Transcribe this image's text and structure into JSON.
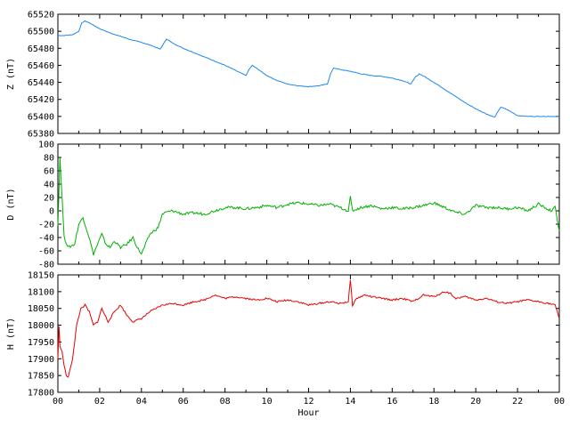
{
  "chart_data": [
    {
      "type": "line",
      "ylabel": "Z (nT)",
      "ylim": [
        65380,
        65520
      ],
      "yticks": [
        "65520",
        "65500",
        "65480",
        "65460",
        "65440",
        "65420",
        "65400",
        "65380"
      ],
      "color": "#1c86ee",
      "x": [
        0.0,
        0.3,
        0.7,
        1.0,
        1.15,
        1.3,
        1.5,
        2.0,
        2.5,
        3.0,
        3.5,
        4.0,
        4.5,
        4.9,
        5.05,
        5.2,
        5.5,
        6.0,
        6.5,
        7.0,
        7.5,
        8.0,
        8.5,
        9.0,
        9.15,
        9.3,
        9.6,
        10.0,
        10.5,
        11.0,
        11.5,
        12.0,
        12.5,
        12.9,
        13.05,
        13.2,
        13.5,
        14.0,
        14.5,
        15.0,
        15.5,
        16.0,
        16.5,
        16.9,
        17.1,
        17.3,
        17.6,
        18.0,
        18.5,
        19.0,
        19.5,
        20.0,
        20.5,
        20.9,
        21.05,
        21.2,
        21.5,
        22.0,
        22.5,
        23.0,
        23.5,
        24.0
      ],
      "y": [
        65495,
        65495,
        65496,
        65500,
        65510,
        65512,
        65510,
        65503,
        65498,
        65494,
        65490,
        65487,
        65483,
        65479,
        65485,
        65491,
        65486,
        65480,
        65475,
        65470,
        65465,
        65460,
        65454,
        65448,
        65455,
        65460,
        65455,
        65448,
        65442,
        65438,
        65436,
        65435,
        65436,
        65438,
        65450,
        65457,
        65455,
        65453,
        65450,
        65448,
        65447,
        65445,
        65442,
        65438,
        65446,
        65450,
        65446,
        65440,
        65432,
        65424,
        65416,
        65409,
        65403,
        65399,
        65405,
        65411,
        65408,
        65401,
        65400,
        65400,
        65400,
        65400
      ]
    },
    {
      "type": "line",
      "ylabel": "D (nT)",
      "ylim": [
        -80,
        100
      ],
      "yticks": [
        "100",
        "80",
        "60",
        "40",
        "20",
        "0",
        "-20",
        "-40",
        "-60",
        "-80"
      ],
      "color": "#00b000",
      "x": [
        0.0,
        0.1,
        0.2,
        0.3,
        0.5,
        0.8,
        1.0,
        1.2,
        1.5,
        1.7,
        1.9,
        2.1,
        2.3,
        2.5,
        2.7,
        3.0,
        3.3,
        3.6,
        3.8,
        4.0,
        4.2,
        4.4,
        4.6,
        4.8,
        5.0,
        5.2,
        5.5,
        6.0,
        6.5,
        7.0,
        7.5,
        8.0,
        8.5,
        9.0,
        9.5,
        10.0,
        10.5,
        11.0,
        11.5,
        12.0,
        12.5,
        13.0,
        13.5,
        13.9,
        14.0,
        14.1,
        14.5,
        15.0,
        15.5,
        16.0,
        16.5,
        17.0,
        17.5,
        18.0,
        18.5,
        19.0,
        19.5,
        20.0,
        20.5,
        21.0,
        21.5,
        22.0,
        22.5,
        23.0,
        23.3,
        23.6,
        23.8,
        24.0
      ],
      "y": [
        -20,
        80,
        20,
        -40,
        -55,
        -50,
        -20,
        -10,
        -40,
        -65,
        -50,
        -35,
        -50,
        -55,
        -45,
        -55,
        -50,
        -40,
        -55,
        -65,
        -50,
        -35,
        -30,
        -25,
        -5,
        -2,
        0,
        -5,
        -3,
        -5,
        0,
        5,
        5,
        3,
        5,
        8,
        5,
        10,
        12,
        10,
        8,
        10,
        5,
        0,
        20,
        0,
        5,
        8,
        3,
        5,
        3,
        5,
        8,
        12,
        5,
        -2,
        -5,
        8,
        5,
        5,
        3,
        5,
        0,
        10,
        5,
        0,
        5,
        -30
      ]
    },
    {
      "type": "line",
      "ylabel": "H (nT)",
      "ylim": [
        17800,
        18150
      ],
      "yticks": [
        "18150",
        "18100",
        "18050",
        "18000",
        "17950",
        "17900",
        "17850",
        "17800"
      ],
      "color": "#e80000",
      "x": [
        0.0,
        0.05,
        0.1,
        0.2,
        0.3,
        0.4,
        0.5,
        0.7,
        0.9,
        1.1,
        1.3,
        1.5,
        1.7,
        1.9,
        2.1,
        2.4,
        2.7,
        3.0,
        3.3,
        3.6,
        4.0,
        4.4,
        4.7,
        5.0,
        5.5,
        6.0,
        6.5,
        7.0,
        7.5,
        8.0,
        8.5,
        9.0,
        9.5,
        10.0,
        10.5,
        11.0,
        11.5,
        12.0,
        12.5,
        13.0,
        13.5,
        13.9,
        14.0,
        14.1,
        14.3,
        14.7,
        15.0,
        15.5,
        16.0,
        16.5,
        17.0,
        17.5,
        18.0,
        18.5,
        18.8,
        19.0,
        19.5,
        20.0,
        20.5,
        21.0,
        21.5,
        22.0,
        22.5,
        23.0,
        23.5,
        23.8,
        24.0
      ],
      "y": [
        17900,
        17995,
        17940,
        17920,
        17880,
        17850,
        17845,
        17900,
        18000,
        18050,
        18060,
        18040,
        18000,
        18010,
        18050,
        18010,
        18040,
        18060,
        18030,
        18010,
        18020,
        18040,
        18050,
        18060,
        18065,
        18060,
        18070,
        18075,
        18090,
        18080,
        18085,
        18080,
        18075,
        18080,
        18070,
        18075,
        18070,
        18060,
        18065,
        18070,
        18065,
        18070,
        18135,
        18060,
        18080,
        18090,
        18085,
        18080,
        18075,
        18080,
        18070,
        18090,
        18085,
        18100,
        18095,
        18080,
        18085,
        18075,
        18080,
        18070,
        18065,
        18070,
        18075,
        18070,
        18065,
        18060,
        18020
      ]
    }
  ],
  "xaxis": {
    "xlabel": "Hour",
    "xlim": [
      0,
      24
    ],
    "ticks": [
      "00",
      "02",
      "04",
      "06",
      "08",
      "10",
      "12",
      "14",
      "16",
      "18",
      "20",
      "22",
      "00"
    ]
  }
}
